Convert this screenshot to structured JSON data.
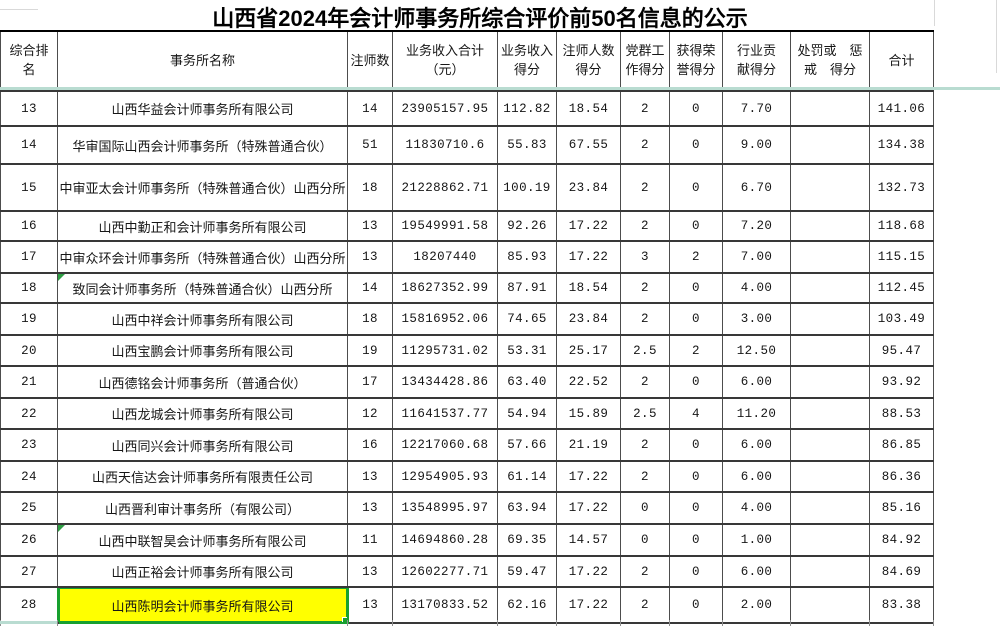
{
  "title": "山西省2024年会计师事务所综合评价前50名信息的公示",
  "colors": {
    "accent_teal": "#b9dcd1",
    "highlight_yellow": "#ffff00",
    "selection_green": "#17a02f",
    "indicator_green": "#2e9e44"
  },
  "table": {
    "headers": [
      "综合排\n名",
      "事务所名称",
      "注师数",
      "业务收入合计\n（元）",
      "业务收入\n得分",
      "注师人数\n得分",
      "党群工\n作得分",
      "获得荣\n誉得分",
      "行业贡\n献得分",
      "处罚或　惩\n戒　得分",
      "合计"
    ],
    "rows": [
      {
        "rank": "13",
        "name": "山西华益会计师事务所有限公司",
        "cpas": "14",
        "revenue": "23905157.95",
        "revenue_score": "112.82",
        "cpa_score": "18.54",
        "party_score": "2",
        "honor_score": "0",
        "industry_score": "7.70",
        "penalty_score": "",
        "total": "141.06",
        "highlight": false,
        "indicator": false
      },
      {
        "rank": "14",
        "name": "华审国际山西会计师事务所（特殊普通合伙）",
        "cpas": "51",
        "revenue": "11830710.6",
        "revenue_score": "55.83",
        "cpa_score": "67.55",
        "party_score": "2",
        "honor_score": "0",
        "industry_score": "9.00",
        "penalty_score": "",
        "total": "134.38",
        "highlight": false,
        "indicator": false
      },
      {
        "rank": "15",
        "name": "中审亚太会计师事务所（特殊普通合伙）山西分所",
        "cpas": "18",
        "revenue": "21228862.71",
        "revenue_score": "100.19",
        "cpa_score": "23.84",
        "party_score": "2",
        "honor_score": "0",
        "industry_score": "6.70",
        "penalty_score": "",
        "total": "132.73",
        "highlight": false,
        "indicator": false
      },
      {
        "rank": "16",
        "name": "山西中勤正和会计师事务所有限公司",
        "cpas": "13",
        "revenue": "19549991.58",
        "revenue_score": "92.26",
        "cpa_score": "17.22",
        "party_score": "2",
        "honor_score": "0",
        "industry_score": "7.20",
        "penalty_score": "",
        "total": "118.68",
        "highlight": false,
        "indicator": false
      },
      {
        "rank": "17",
        "name": "中审众环会计师事务所（特殊普通合伙）山西分所",
        "cpas": "13",
        "revenue": "18207440",
        "revenue_score": "85.93",
        "cpa_score": "17.22",
        "party_score": "3",
        "honor_score": "2",
        "industry_score": "7.00",
        "penalty_score": "",
        "total": "115.15",
        "highlight": false,
        "indicator": false
      },
      {
        "rank": "18",
        "name": "致同会计师事务所（特殊普通合伙）山西分所",
        "cpas": "14",
        "revenue": "18627352.99",
        "revenue_score": "87.91",
        "cpa_score": "18.54",
        "party_score": "2",
        "honor_score": "0",
        "industry_score": "4.00",
        "penalty_score": "",
        "total": "112.45",
        "highlight": false,
        "indicator": true
      },
      {
        "rank": "19",
        "name": "山西中祥会计师事务所有限公司",
        "cpas": "18",
        "revenue": "15816952.06",
        "revenue_score": "74.65",
        "cpa_score": "23.84",
        "party_score": "2",
        "honor_score": "0",
        "industry_score": "3.00",
        "penalty_score": "",
        "total": "103.49",
        "highlight": false,
        "indicator": false
      },
      {
        "rank": "20",
        "name": "山西宝鹏会计师事务所有限公司",
        "cpas": "19",
        "revenue": "11295731.02",
        "revenue_score": "53.31",
        "cpa_score": "25.17",
        "party_score": "2.5",
        "honor_score": "2",
        "industry_score": "12.50",
        "penalty_score": "",
        "total": "95.47",
        "highlight": false,
        "indicator": false
      },
      {
        "rank": "21",
        "name": "山西德铭会计师事务所（普通合伙）",
        "cpas": "17",
        "revenue": "13434428.86",
        "revenue_score": "63.40",
        "cpa_score": "22.52",
        "party_score": "2",
        "honor_score": "0",
        "industry_score": "6.00",
        "penalty_score": "",
        "total": "93.92",
        "highlight": false,
        "indicator": false
      },
      {
        "rank": "22",
        "name": "山西龙城会计师事务所有限公司",
        "cpas": "12",
        "revenue": "11641537.77",
        "revenue_score": "54.94",
        "cpa_score": "15.89",
        "party_score": "2.5",
        "honor_score": "4",
        "industry_score": "11.20",
        "penalty_score": "",
        "total": "88.53",
        "highlight": false,
        "indicator": false
      },
      {
        "rank": "23",
        "name": "山西同兴会计师事务所有限公司",
        "cpas": "16",
        "revenue": "12217060.68",
        "revenue_score": "57.66",
        "cpa_score": "21.19",
        "party_score": "2",
        "honor_score": "0",
        "industry_score": "6.00",
        "penalty_score": "",
        "total": "86.85",
        "highlight": false,
        "indicator": false
      },
      {
        "rank": "24",
        "name": "山西天信达会计师事务所有限责任公司",
        "cpas": "13",
        "revenue": "12954905.93",
        "revenue_score": "61.14",
        "cpa_score": "17.22",
        "party_score": "2",
        "honor_score": "0",
        "industry_score": "6.00",
        "penalty_score": "",
        "total": "86.36",
        "highlight": false,
        "indicator": false
      },
      {
        "rank": "25",
        "name": "山西晋利审计事务所（有限公司）",
        "cpas": "13",
        "revenue": "13548995.97",
        "revenue_score": "63.94",
        "cpa_score": "17.22",
        "party_score": "0",
        "honor_score": "0",
        "industry_score": "4.00",
        "penalty_score": "",
        "total": "85.16",
        "highlight": false,
        "indicator": false
      },
      {
        "rank": "26",
        "name": "山西中联智昊会计师事务所有限公司",
        "cpas": "11",
        "revenue": "14694860.28",
        "revenue_score": "69.35",
        "cpa_score": "14.57",
        "party_score": "0",
        "honor_score": "0",
        "industry_score": "1.00",
        "penalty_score": "",
        "total": "84.92",
        "highlight": false,
        "indicator": true
      },
      {
        "rank": "27",
        "name": "山西正裕会计师事务所有限公司",
        "cpas": "13",
        "revenue": "12602277.71",
        "revenue_score": "59.47",
        "cpa_score": "17.22",
        "party_score": "2",
        "honor_score": "0",
        "industry_score": "6.00",
        "penalty_score": "",
        "total": "84.69",
        "highlight": false,
        "indicator": false
      },
      {
        "rank": "28",
        "name": "山西陈明会计师事务所有限公司",
        "cpas": "13",
        "revenue": "13170833.52",
        "revenue_score": "62.16",
        "cpa_score": "17.22",
        "party_score": "2",
        "honor_score": "0",
        "industry_score": "2.00",
        "penalty_score": "",
        "total": "83.38",
        "highlight": true,
        "indicator": false
      }
    ]
  }
}
